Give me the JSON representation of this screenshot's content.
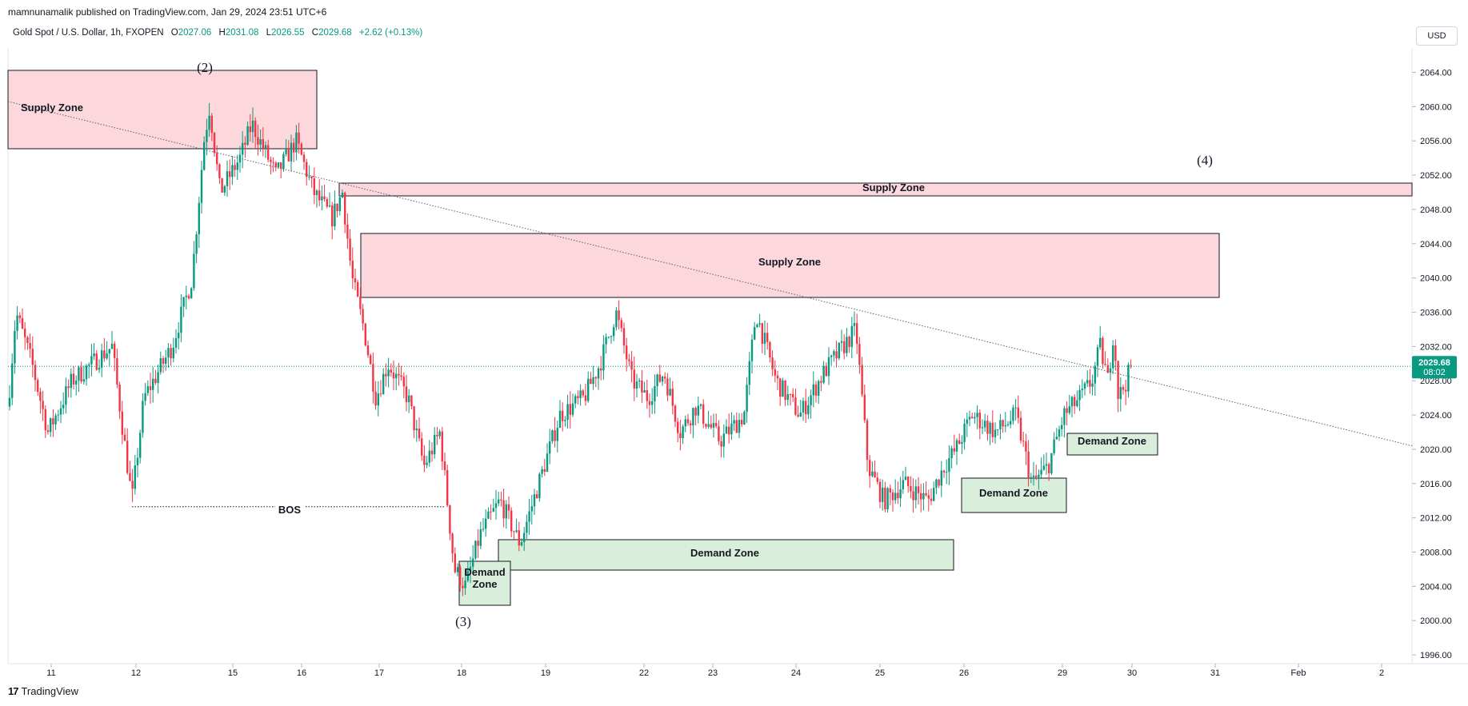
{
  "header": {
    "publisher": "mamnunamalik published on TradingView.com, Jan 29, 2024 23:51 UTC+6"
  },
  "legend": {
    "symbol": "Gold Spot / U.S. Dollar, 1h, FXOPEN",
    "open_label": "O",
    "open": "2027.06",
    "high_label": "H",
    "high": "2031.08",
    "low_label": "L",
    "low": "2026.55",
    "close_label": "C",
    "close": "2029.68",
    "change": "+2.62 (+0.13%)"
  },
  "currency_button": "USD",
  "footer": {
    "brand": "TradingView",
    "logo": "17"
  },
  "colors": {
    "up": "#089981",
    "down": "#f23645",
    "supply_fill": "#fcd8dc",
    "demand_fill": "#d9efdb",
    "price_label": "#089981"
  },
  "chart_data": {
    "type": "candlestick",
    "title": "Gold Spot / U.S. Dollar, 1h, FXOPEN",
    "ylim": [
      1996,
      2066
    ],
    "y_ticks": [
      "2064.00",
      "2060.00",
      "2056.00",
      "2052.00",
      "2048.00",
      "2044.00",
      "2040.00",
      "2036.00",
      "2032.00",
      "2028.00",
      "2024.00",
      "2020.00",
      "2016.00",
      "2012.00",
      "2008.00",
      "2004.00",
      "2000.00",
      "1996.00"
    ],
    "x_ticks": [
      "11",
      "12",
      "15",
      "16",
      "17",
      "18",
      "19",
      "22",
      "23",
      "24",
      "25",
      "26",
      "29",
      "30",
      "31",
      "Feb",
      "2"
    ],
    "current_price": {
      "price": "2029.68",
      "countdown": "08:02"
    },
    "ohlc_path": [
      [
        "11",
        2025
      ],
      [
        "11",
        2036
      ],
      [
        "11",
        2030
      ],
      [
        "11",
        2022
      ],
      [
        "11",
        2028
      ],
      [
        "11",
        2032
      ],
      [
        "12",
        2014
      ],
      [
        "12",
        2026
      ],
      [
        "12",
        2031
      ],
      [
        "12",
        2034
      ],
      [
        "12",
        2038
      ],
      [
        "15",
        2056
      ],
      [
        "15",
        2060
      ],
      [
        "15",
        2050
      ],
      [
        "15",
        2054
      ],
      [
        "15",
        2058
      ],
      [
        "16",
        2052
      ],
      [
        "16",
        2056
      ],
      [
        "16",
        2050
      ],
      [
        "16",
        2047
      ],
      [
        "16",
        2050
      ],
      [
        "17",
        2040
      ],
      [
        "17",
        2026
      ],
      [
        "17",
        2030
      ],
      [
        "17",
        2022
      ],
      [
        "18",
        2006
      ],
      [
        "18",
        2004
      ],
      [
        "18",
        2010
      ],
      [
        "18",
        2014
      ],
      [
        "18",
        2009
      ],
      [
        "19",
        2018
      ],
      [
        "19",
        2024
      ],
      [
        "19",
        2026
      ],
      [
        "19",
        2024
      ],
      [
        "22",
        2036
      ],
      [
        "22",
        2028
      ],
      [
        "22",
        2026
      ],
      [
        "22",
        2029
      ],
      [
        "23",
        2022
      ],
      [
        "23",
        2025
      ],
      [
        "23",
        2027
      ],
      [
        "23",
        2021
      ],
      [
        "24",
        2036
      ],
      [
        "24",
        2028
      ],
      [
        "24",
        2024
      ],
      [
        "24",
        2029
      ],
      [
        "25",
        2034
      ],
      [
        "25",
        2018
      ],
      [
        "25",
        2014
      ],
      [
        "25",
        2016
      ],
      [
        "26",
        2014
      ],
      [
        "26",
        2020
      ],
      [
        "26",
        2022
      ],
      [
        "26",
        2024
      ],
      [
        "29",
        2016
      ],
      [
        "29",
        2018
      ],
      [
        "29",
        2024
      ],
      [
        "29",
        2028
      ],
      [
        "30",
        2034
      ],
      [
        "30",
        2026
      ],
      [
        "30",
        2028
      ],
      [
        "30",
        2029.68
      ]
    ],
    "zones": [
      {
        "label": "Supply Zone",
        "kind": "supply",
        "x_from": "11",
        "x_to": "16",
        "y_from": 2055,
        "y_to": 2064.5
      },
      {
        "label": "Supply Zone",
        "kind": "supply",
        "x_from": "16",
        "x_to": "2",
        "y_from": 2049.5,
        "y_to": 2051
      },
      {
        "label": "Supply Zone",
        "kind": "supply",
        "x_from": "17",
        "x_to": "30",
        "y_from": 2037.7,
        "y_to": 2045.2
      },
      {
        "label": "Demand Zone",
        "kind": "demand",
        "x_from": "18",
        "x_to": "25",
        "y_from": 2005.8,
        "y_to": 2009.5
      },
      {
        "label": "Demand\nZone",
        "kind": "demand",
        "x_from": "18",
        "x_to": "18",
        "y_from": 2002.2,
        "y_to": 2007.2
      },
      {
        "label": "Demand Zone",
        "kind": "demand",
        "x_from": "26",
        "x_to": "29",
        "y_from": 2012.5,
        "y_to": 2016.5
      },
      {
        "label": "Demand Zone",
        "kind": "demand",
        "x_from": "29",
        "x_to": "30",
        "y_from": 2019.7,
        "y_to": 2022.2
      }
    ],
    "annotations": [
      {
        "text": "(2)",
        "x": "15",
        "y": 2065
      },
      {
        "text": "(3)",
        "x": "18",
        "y": 2000
      },
      {
        "text": "(4)",
        "x": "31",
        "y": 2053.5
      },
      {
        "text": "BOS",
        "x": "15",
        "y": 2013.3
      }
    ],
    "trendline": {
      "from": {
        "x": "11",
        "y": 2060.6
      },
      "to": {
        "x": "2",
        "y": 2020.4
      }
    }
  }
}
